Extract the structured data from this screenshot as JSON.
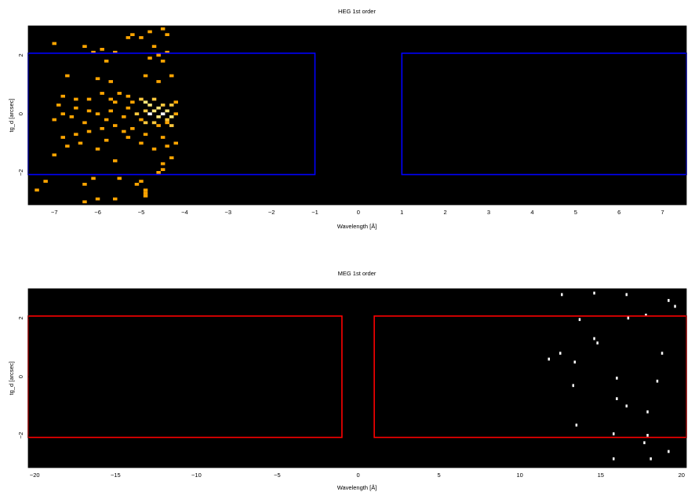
{
  "chart_data": [
    {
      "type": "heatmap",
      "title": "HEG 1st order",
      "xlabel": "Wavelength [Å]",
      "ylabel": "tg_d [arcsec]",
      "xlim": [
        -7.6,
        7.55
      ],
      "ylim": [
        -3.1,
        3.0
      ],
      "xticks": [
        -7,
        -6,
        -5,
        -4,
        -3,
        -2,
        -1,
        0,
        1,
        2,
        3,
        4,
        5,
        6,
        7
      ],
      "xtick_labels": [
        "−7",
        "−6",
        "−5",
        "−4",
        "−3",
        "−2",
        "−1",
        "0",
        "1",
        "2",
        "3",
        "4",
        "5",
        "6",
        "7"
      ],
      "yticks": [
        -2,
        0,
        2
      ],
      "ytick_labels": [
        "−2",
        "0",
        "2"
      ],
      "background": "#000000",
      "region_color": "#0000ff",
      "regions": [
        {
          "x": [
            -7.6,
            -1.0
          ],
          "y": [
            -2.07,
            2.07
          ]
        },
        {
          "x": [
            1.0,
            7.55
          ],
          "y": [
            -2.07,
            2.07
          ]
        }
      ],
      "bin_size": [
        0.1,
        0.1
      ],
      "colormap": [
        "#ffa500",
        "#ffc83c",
        "#ffe678",
        "#ffffff"
      ],
      "counts": [
        [
          -7.0,
          2.4,
          1
        ],
        [
          -6.3,
          2.3,
          1
        ],
        [
          -6.1,
          2.1,
          1
        ],
        [
          -5.9,
          2.2,
          1
        ],
        [
          -5.8,
          1.8,
          1
        ],
        [
          -5.6,
          2.1,
          1
        ],
        [
          -5.3,
          2.6,
          1
        ],
        [
          -5.2,
          2.7,
          1
        ],
        [
          -5.0,
          2.6,
          1
        ],
        [
          -4.8,
          2.8,
          1
        ],
        [
          -4.7,
          2.3,
          1
        ],
        [
          -4.5,
          2.9,
          1
        ],
        [
          -4.4,
          2.7,
          1
        ],
        [
          -4.6,
          2.0,
          1
        ],
        [
          -4.8,
          1.9,
          1
        ],
        [
          -4.5,
          1.8,
          1
        ],
        [
          -4.4,
          2.1,
          1
        ],
        [
          -4.3,
          1.3,
          1
        ],
        [
          -4.6,
          1.1,
          1
        ],
        [
          -4.9,
          1.3,
          1
        ],
        [
          -6.7,
          1.3,
          1
        ],
        [
          -6.0,
          1.2,
          1
        ],
        [
          -5.7,
          1.1,
          1
        ],
        [
          -5.5,
          0.7,
          1
        ],
        [
          -5.3,
          0.6,
          1
        ],
        [
          -5.2,
          0.4,
          1
        ],
        [
          -5.0,
          0.5,
          2
        ],
        [
          -4.9,
          0.4,
          3
        ],
        [
          -4.8,
          0.3,
          3
        ],
        [
          -4.7,
          0.5,
          2
        ],
        [
          -4.6,
          0.2,
          3
        ],
        [
          -4.5,
          0.3,
          2
        ],
        [
          -4.4,
          0.1,
          3
        ],
        [
          -4.3,
          0.3,
          2
        ],
        [
          -4.2,
          0.4,
          1
        ],
        [
          -4.9,
          0.1,
          2
        ],
        [
          -4.8,
          0.0,
          4
        ],
        [
          -4.7,
          0.1,
          3
        ],
        [
          -4.6,
          -0.1,
          3
        ],
        [
          -4.5,
          0.0,
          4
        ],
        [
          -4.4,
          -0.2,
          2
        ],
        [
          -4.3,
          -0.1,
          3
        ],
        [
          -4.2,
          0.0,
          1
        ],
        [
          -5.1,
          0.0,
          2
        ],
        [
          -5.0,
          -0.2,
          1
        ],
        [
          -4.9,
          -0.3,
          2
        ],
        [
          -4.7,
          -0.3,
          2
        ],
        [
          -4.6,
          -0.4,
          1
        ],
        [
          -4.4,
          -0.3,
          1
        ],
        [
          -4.3,
          -0.4,
          2
        ],
        [
          -5.3,
          0.2,
          1
        ],
        [
          -5.4,
          -0.1,
          1
        ],
        [
          -5.6,
          0.4,
          1
        ],
        [
          -5.7,
          0.1,
          1
        ],
        [
          -5.8,
          -0.2,
          1
        ],
        [
          -6.0,
          0.0,
          1
        ],
        [
          -6.2,
          0.1,
          1
        ],
        [
          -6.3,
          -0.3,
          1
        ],
        [
          -6.5,
          0.2,
          1
        ],
        [
          -6.6,
          -0.1,
          1
        ],
        [
          -6.8,
          0.0,
          1
        ],
        [
          -6.9,
          0.3,
          1
        ],
        [
          -7.0,
          -0.2,
          1
        ],
        [
          -6.8,
          0.6,
          1
        ],
        [
          -6.5,
          0.5,
          1
        ],
        [
          -6.2,
          0.5,
          1
        ],
        [
          -5.9,
          0.7,
          1
        ],
        [
          -5.7,
          0.5,
          1
        ],
        [
          -5.2,
          -0.5,
          1
        ],
        [
          -5.4,
          -0.6,
          1
        ],
        [
          -5.6,
          -0.4,
          1
        ],
        [
          -5.9,
          -0.5,
          1
        ],
        [
          -6.2,
          -0.6,
          1
        ],
        [
          -6.5,
          -0.7,
          1
        ],
        [
          -6.8,
          -0.8,
          1
        ],
        [
          -4.9,
          -0.7,
          1
        ],
        [
          -4.5,
          -0.8,
          1
        ],
        [
          -4.4,
          -1.1,
          1
        ],
        [
          -4.7,
          -1.2,
          1
        ],
        [
          -4.2,
          -1.0,
          1
        ],
        [
          -5.0,
          -1.0,
          1
        ],
        [
          -5.3,
          -0.8,
          1
        ],
        [
          -5.8,
          -0.9,
          1
        ],
        [
          -6.0,
          -1.2,
          1
        ],
        [
          -6.4,
          -1.0,
          1
        ],
        [
          -6.7,
          -1.1,
          1
        ],
        [
          -7.0,
          -1.4,
          1
        ],
        [
          -5.6,
          -1.6,
          1
        ],
        [
          -4.5,
          -1.7,
          1
        ],
        [
          -4.5,
          -1.9,
          1
        ],
        [
          -5.5,
          -2.2,
          1
        ],
        [
          -7.2,
          -2.3,
          1
        ],
        [
          -6.1,
          -2.2,
          1
        ],
        [
          -5.1,
          -2.4,
          1
        ],
        [
          -4.9,
          -2.6,
          1
        ],
        [
          -7.4,
          -2.6,
          1
        ],
        [
          -6.3,
          -2.4,
          1
        ],
        [
          -5.0,
          -2.3,
          1
        ],
        [
          -5.6,
          -2.9,
          1
        ],
        [
          -6.0,
          -2.9,
          1
        ],
        [
          -4.9,
          -2.8,
          1
        ],
        [
          -6.3,
          -3.0,
          1
        ],
        [
          -4.6,
          -2.0,
          1
        ],
        [
          -4.3,
          -1.5,
          1
        ],
        [
          -4.9,
          -2.7,
          1
        ]
      ]
    },
    {
      "type": "heatmap",
      "title": "MEG 1st order",
      "xlabel": "Wavelength [Å]",
      "ylabel": "tg_d [arcsec]",
      "xlim": [
        -20.4,
        20.3
      ],
      "ylim": [
        -3.1,
        3.0
      ],
      "xticks": [
        -20,
        -15,
        -10,
        -5,
        0,
        5,
        10,
        15,
        20
      ],
      "xtick_labels": [
        "−20",
        "−15",
        "−10",
        "−5",
        "0",
        "5",
        "10",
        "15",
        "20"
      ],
      "yticks": [
        -2,
        0,
        2
      ],
      "ytick_labels": [
        "−2",
        "0",
        "2"
      ],
      "background": "#000000",
      "region_color": "#ff0000",
      "regions": [
        {
          "x": [
            -20.4,
            -1.0
          ],
          "y": [
            -2.07,
            2.07
          ]
        },
        {
          "x": [
            1.0,
            20.3
          ],
          "y": [
            -2.07,
            2.07
          ]
        }
      ],
      "bin_size": [
        0.12,
        0.1
      ],
      "colormap": [
        "#ffffff"
      ],
      "counts": [
        [
          12.6,
          2.8,
          1
        ],
        [
          14.6,
          2.85,
          1
        ],
        [
          16.6,
          2.8,
          1
        ],
        [
          19.2,
          2.6,
          1
        ],
        [
          19.6,
          2.4,
          1
        ],
        [
          17.8,
          2.1,
          1
        ],
        [
          16.7,
          2.0,
          1
        ],
        [
          13.7,
          1.95,
          1
        ],
        [
          14.6,
          1.3,
          1
        ],
        [
          14.8,
          1.15,
          1
        ],
        [
          12.5,
          0.8,
          1
        ],
        [
          11.8,
          0.6,
          1
        ],
        [
          13.4,
          0.5,
          1
        ],
        [
          18.8,
          0.8,
          1
        ],
        [
          16.0,
          -0.05,
          1
        ],
        [
          18.5,
          -0.15,
          1
        ],
        [
          13.3,
          -0.3,
          1
        ],
        [
          16.0,
          -0.75,
          1
        ],
        [
          16.6,
          -1.0,
          1
        ],
        [
          17.9,
          -1.2,
          1
        ],
        [
          13.5,
          -1.65,
          1
        ],
        [
          15.8,
          -1.95,
          1
        ],
        [
          17.9,
          -2.0,
          1
        ],
        [
          17.7,
          -2.25,
          1
        ],
        [
          19.2,
          -2.55,
          1
        ],
        [
          15.8,
          -2.8,
          1
        ],
        [
          18.1,
          -2.8,
          1
        ]
      ]
    }
  ]
}
